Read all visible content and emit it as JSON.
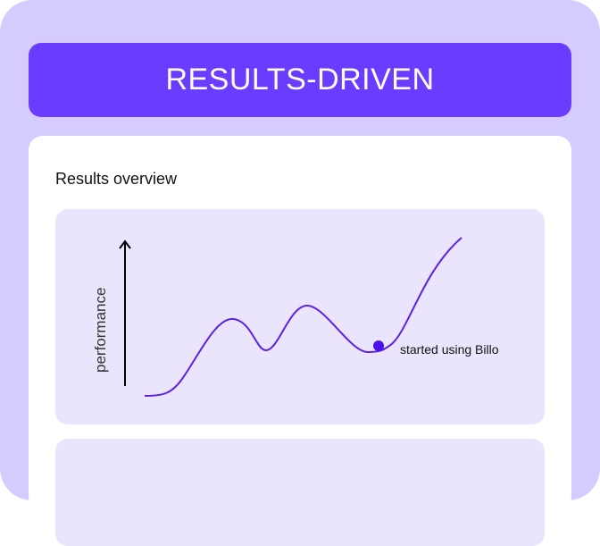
{
  "header": {
    "title": "RESULTS-DRIVEN"
  },
  "card": {
    "title": "Results overview"
  },
  "chart": {
    "y_axis_label": "performance",
    "annotation": "started using Billo",
    "colors": {
      "line": "#5b21e6",
      "marker": "#4a12e8",
      "axis": "#000000"
    }
  }
}
